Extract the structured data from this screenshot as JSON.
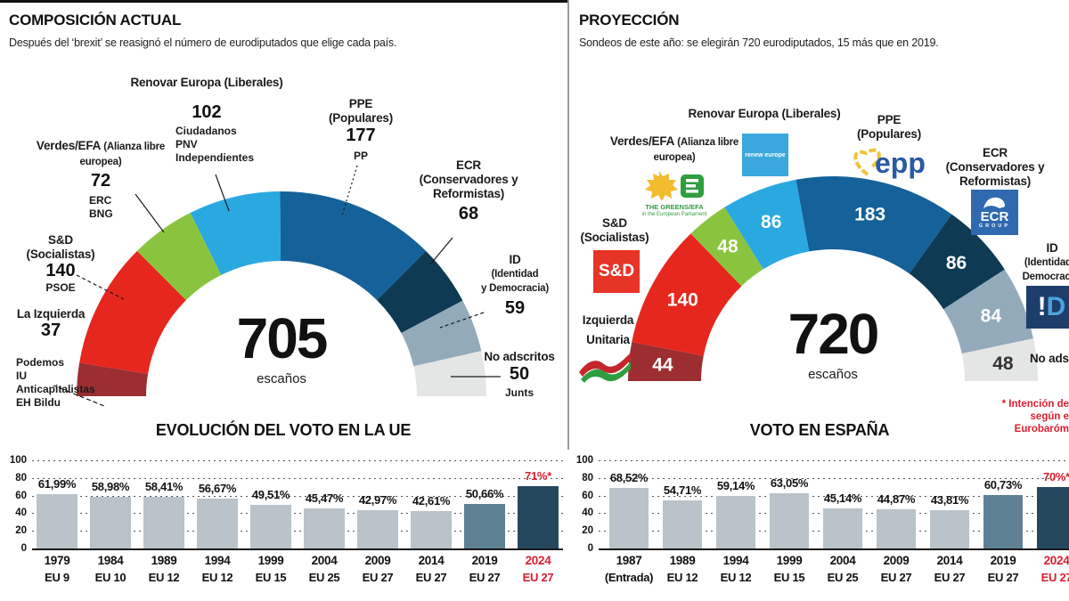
{
  "accent_red": "#d71f2f",
  "left_panel": {
    "title": "COMPOSICIÓN ACTUAL",
    "subtitle": "Después del ‘brexit’ se reasignó el número de eurodiputados que elige cada país.",
    "center": {
      "total": "705",
      "unit": "escaños"
    },
    "labels": {
      "renovar": {
        "heading": "Renovar Europa (Liberales)",
        "value": "102",
        "parties": [
          "Ciudadanos",
          "PNV",
          "Independientes"
        ]
      },
      "verdes": {
        "heading": "Verdes/EFA",
        "heading_small": "(Alianza libre",
        "heading_small2": "europea)",
        "value": "72",
        "parties": [
          "ERC",
          "BNG"
        ]
      },
      "sd": {
        "heading": "S&D",
        "sub": "(Socialistas)",
        "value": "140",
        "parties": [
          "PSOE"
        ]
      },
      "izquierda": {
        "heading": "La Izquierda",
        "value": "37",
        "parties": [
          "Podemos",
          "IU",
          "Anticapitalistas",
          "EH Bildu"
        ]
      },
      "ppe": {
        "heading": "PPE",
        "sub": "(Populares)",
        "value": "177",
        "parties": [
          "PP"
        ]
      },
      "ecr": {
        "heading": "ECR",
        "sub": "(Conservadores y",
        "sub2": "Reformistas)",
        "value": "68"
      },
      "id": {
        "heading": "ID",
        "sub": "(Identidad",
        "sub2": "y Democracia)",
        "value": "59"
      },
      "na": {
        "heading": "No adscritos",
        "value": "50",
        "parties": [
          "Junts"
        ]
      }
    }
  },
  "right_panel": {
    "title": "PROYECCIÓN",
    "subtitle": "Sondeos de este año: se elegirán 720 eurodiputados, 15 más que en 2019.",
    "center": {
      "total": "720",
      "unit": "escaños"
    },
    "labels": {
      "renovar": {
        "heading": "Renovar Europa (Liberales)",
        "logo_text": "renew europe"
      },
      "verdes": {
        "heading": "Verdes/EFA",
        "heading_small": "(Alianza libre",
        "heading_small2": "europea)",
        "logo_line1": "THE GREENS/EFA",
        "logo_line2": "in the European Parliament"
      },
      "sd": {
        "heading": "S&D",
        "sub": "(Socialistas)",
        "logo_text": "S&D"
      },
      "iu": {
        "heading": "Izquierda",
        "heading2": "Unitaria"
      },
      "ppe": {
        "heading": "PPE",
        "sub": "(Populares)",
        "logo_text": "epp"
      },
      "ecr": {
        "heading": "ECR",
        "sub": "(Conservadores y",
        "sub2": "Reformistas)",
        "logo_text": "ECR",
        "logo_sub": "GROUP"
      },
      "id": {
        "heading": "ID",
        "sub": "(Identidad y",
        "sub2": "Democracia)",
        "logo_text_a": "!",
        "logo_text_b": "D"
      },
      "na": {
        "heading": "No adscritos"
      }
    },
    "footnote": [
      "* Intención de",
      "según e",
      "Eurobaróm"
    ]
  },
  "chart_data": [
    {
      "type": "pie",
      "subtype": "hemicycle",
      "title": "COMPOSICIÓN ACTUAL",
      "total": 705,
      "unit": "escaños",
      "labels": [
        "La Izquierda",
        "S&D (Socialistas)",
        "Verdes/EFA (Alianza libre europea)",
        "Renovar Europa (Liberales)",
        "PPE (Populares)",
        "ECR (Conservadores y Reformistas)",
        "ID (Identidad y Democracia)",
        "No adscritos"
      ],
      "values": [
        37,
        140,
        72,
        102,
        177,
        68,
        59,
        50
      ],
      "colors": [
        "#9c2e31",
        "#e6271e",
        "#8ac43e",
        "#2aa9e0",
        "#15619a",
        "#0e3a53",
        "#92aaba",
        "#e4e5e5"
      ],
      "show_seat_labels": false
    },
    {
      "type": "pie",
      "subtype": "hemicycle",
      "title": "PROYECCIÓN",
      "total": 720,
      "unit": "escaños",
      "labels": [
        "Izquierda Unitaria",
        "S&D (Socialistas)",
        "Verdes/EFA (Alianza libre europea)",
        "Renovar Europa (Liberales)",
        "PPE (Populares)",
        "ECR (Conservadores y Reformistas)",
        "ID (Identidad y Democracia)",
        "No adscritos"
      ],
      "values": [
        44,
        140,
        48,
        86,
        183,
        86,
        84,
        48
      ],
      "colors": [
        "#9c2e31",
        "#e6271e",
        "#8ac43e",
        "#2aa9e0",
        "#15619a",
        "#0e3a53",
        "#92aaba",
        "#e4e5e5"
      ],
      "show_seat_labels": true,
      "seat_label_colors": [
        "#fff",
        "#fff",
        "#fff",
        "#fff",
        "#fff",
        "#fff",
        "#fff",
        "#333"
      ]
    },
    {
      "type": "bar",
      "title": "EVOLUCIÓN DEL VOTO EN LA UE",
      "categories": [
        "1979",
        "1984",
        "1989",
        "1994",
        "1999",
        "2004",
        "2009",
        "2014",
        "2019",
        "2024"
      ],
      "category_sub": [
        "EU 9",
        "EU 10",
        "EU 12",
        "EU 12",
        "EU 15",
        "EU 25",
        "EU 27",
        "EU 27",
        "EU 27",
        "EU 27"
      ],
      "values": [
        61.99,
        58.98,
        58.41,
        56.67,
        49.51,
        45.47,
        42.97,
        42.61,
        50.66,
        71
      ],
      "value_labels": [
        "61,99%",
        "58,98%",
        "58,41%",
        "56,67%",
        "49,51%",
        "45,47%",
        "42,97%",
        "42,61%",
        "50,66%",
        "71%*"
      ],
      "bar_colors": [
        "#b9c3c9",
        "#b9c3c9",
        "#b9c3c9",
        "#b9c3c9",
        "#b9c3c9",
        "#b9c3c9",
        "#b9c3c9",
        "#b9c3c9",
        "#5e8093",
        "#25485f"
      ],
      "red_index": 9,
      "ylim": [
        0,
        100
      ],
      "yticks": [
        100,
        80,
        60,
        40,
        20,
        0
      ],
      "grid": true,
      "legend": false
    },
    {
      "type": "bar",
      "title": "VOTO EN  ESPAÑA",
      "categories": [
        "1987",
        "1989",
        "1994",
        "1999",
        "2004",
        "2009",
        "2014",
        "2019",
        "2024"
      ],
      "category_sub": [
        "(Entrada)",
        "EU 12",
        "EU 12",
        "EU 15",
        "EU 25",
        "EU 27",
        "EU 27",
        "EU 27",
        "EU 27"
      ],
      "values": [
        68.52,
        54.71,
        59.14,
        63.05,
        45.14,
        44.87,
        43.81,
        60.73,
        70
      ],
      "value_labels": [
        "68,52%",
        "54,71%",
        "59,14%",
        "63,05%",
        "45,14%",
        "44,87%",
        "43,81%",
        "60,73%",
        "70%*"
      ],
      "bar_colors": [
        "#b9c3c9",
        "#b9c3c9",
        "#b9c3c9",
        "#b9c3c9",
        "#b9c3c9",
        "#b9c3c9",
        "#b9c3c9",
        "#5e8093",
        "#25485f"
      ],
      "red_index": 8,
      "ylim": [
        0,
        100
      ],
      "yticks": [
        100,
        80,
        60,
        40,
        20,
        0
      ],
      "grid": true,
      "legend": false
    }
  ]
}
